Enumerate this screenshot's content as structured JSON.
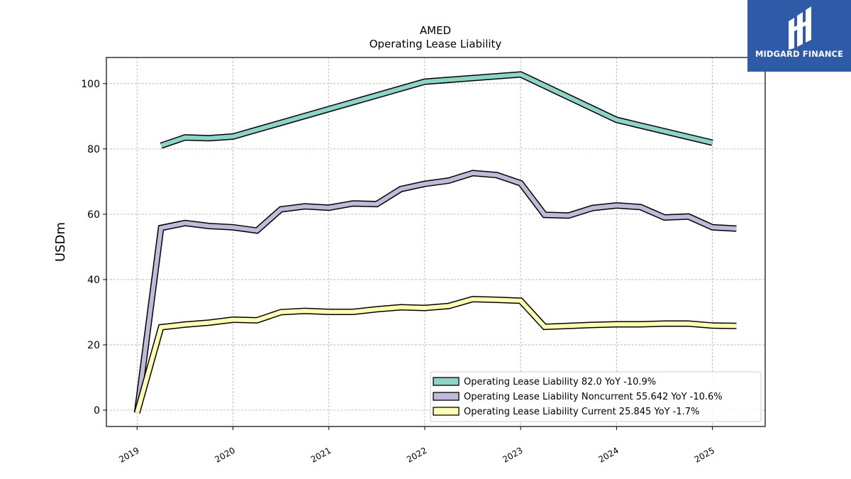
{
  "logo": {
    "text": "MIDGARD FINANCE",
    "background": "#2f5aa8"
  },
  "chart_data": {
    "type": "line",
    "title": "AMED",
    "subtitle": "Operating Lease Liability",
    "xlabel": "",
    "ylabel": "USDm",
    "xlim": [
      2018.68,
      2025.55
    ],
    "ylim": [
      -5,
      108
    ],
    "x_ticks": [
      {
        "value": 2019,
        "label": "2019"
      },
      {
        "value": 2020,
        "label": "2020"
      },
      {
        "value": 2021,
        "label": "2021"
      },
      {
        "value": 2022,
        "label": "2022"
      },
      {
        "value": 2023,
        "label": "2023"
      },
      {
        "value": 2024,
        "label": "2024"
      },
      {
        "value": 2025,
        "label": "2025"
      }
    ],
    "y_ticks": [
      0,
      20,
      40,
      60,
      80,
      100
    ],
    "grid": true,
    "legend_position": "bottom-right",
    "series": [
      {
        "name": "Operating Lease Liability  82.0 YoY -10.9%",
        "color": "#8dd3c7",
        "points": [
          [
            2019.25,
            81.0
          ],
          [
            2019.5,
            83.5
          ],
          [
            2019.75,
            83.3
          ],
          [
            2020.0,
            83.8
          ],
          [
            2022.0,
            100.6
          ],
          [
            2023.0,
            102.8
          ],
          [
            2024.0,
            88.9
          ],
          [
            2025.0,
            81.9
          ]
        ]
      },
      {
        "name": "Operating Lease Liability Noncurrent  55.642 YoY -10.6%",
        "color": "#bebada",
        "points": [
          [
            2019.0,
            -0.8
          ],
          [
            2019.25,
            55.8
          ],
          [
            2019.5,
            57.3
          ],
          [
            2019.75,
            56.4
          ],
          [
            2020.0,
            56.0
          ],
          [
            2020.25,
            55.0
          ],
          [
            2020.5,
            61.5
          ],
          [
            2020.75,
            62.4
          ],
          [
            2021.0,
            62.0
          ],
          [
            2021.25,
            63.3
          ],
          [
            2021.5,
            63.1
          ],
          [
            2021.75,
            67.7
          ],
          [
            2022.0,
            69.3
          ],
          [
            2022.25,
            70.3
          ],
          [
            2022.5,
            72.6
          ],
          [
            2022.75,
            72.0
          ],
          [
            2023.0,
            69.5
          ],
          [
            2023.25,
            59.8
          ],
          [
            2023.5,
            59.6
          ],
          [
            2023.75,
            61.9
          ],
          [
            2024.0,
            62.7
          ],
          [
            2024.25,
            62.2
          ],
          [
            2024.5,
            59.0
          ],
          [
            2024.75,
            59.3
          ],
          [
            2025.0,
            56.0
          ],
          [
            2025.25,
            55.6
          ]
        ]
      },
      {
        "name": "Operating Lease Liability Current  25.845 YoY -1.7%",
        "color": "#ffffb3",
        "points": [
          [
            2019.0,
            -0.8
          ],
          [
            2019.25,
            25.4
          ],
          [
            2019.5,
            26.2
          ],
          [
            2019.75,
            26.8
          ],
          [
            2020.0,
            27.7
          ],
          [
            2020.25,
            27.5
          ],
          [
            2020.5,
            30.0
          ],
          [
            2020.75,
            30.4
          ],
          [
            2021.0,
            30.1
          ],
          [
            2021.25,
            30.1
          ],
          [
            2021.5,
            30.9
          ],
          [
            2021.75,
            31.5
          ],
          [
            2022.0,
            31.3
          ],
          [
            2022.25,
            31.9
          ],
          [
            2022.5,
            34.0
          ],
          [
            2022.75,
            33.8
          ],
          [
            2023.0,
            33.5
          ],
          [
            2023.25,
            25.5
          ],
          [
            2023.5,
            25.8
          ],
          [
            2023.75,
            26.1
          ],
          [
            2024.0,
            26.3
          ],
          [
            2024.25,
            26.3
          ],
          [
            2024.5,
            26.5
          ],
          [
            2024.75,
            26.5
          ],
          [
            2025.0,
            25.9
          ],
          [
            2025.25,
            25.8
          ]
        ]
      }
    ]
  }
}
